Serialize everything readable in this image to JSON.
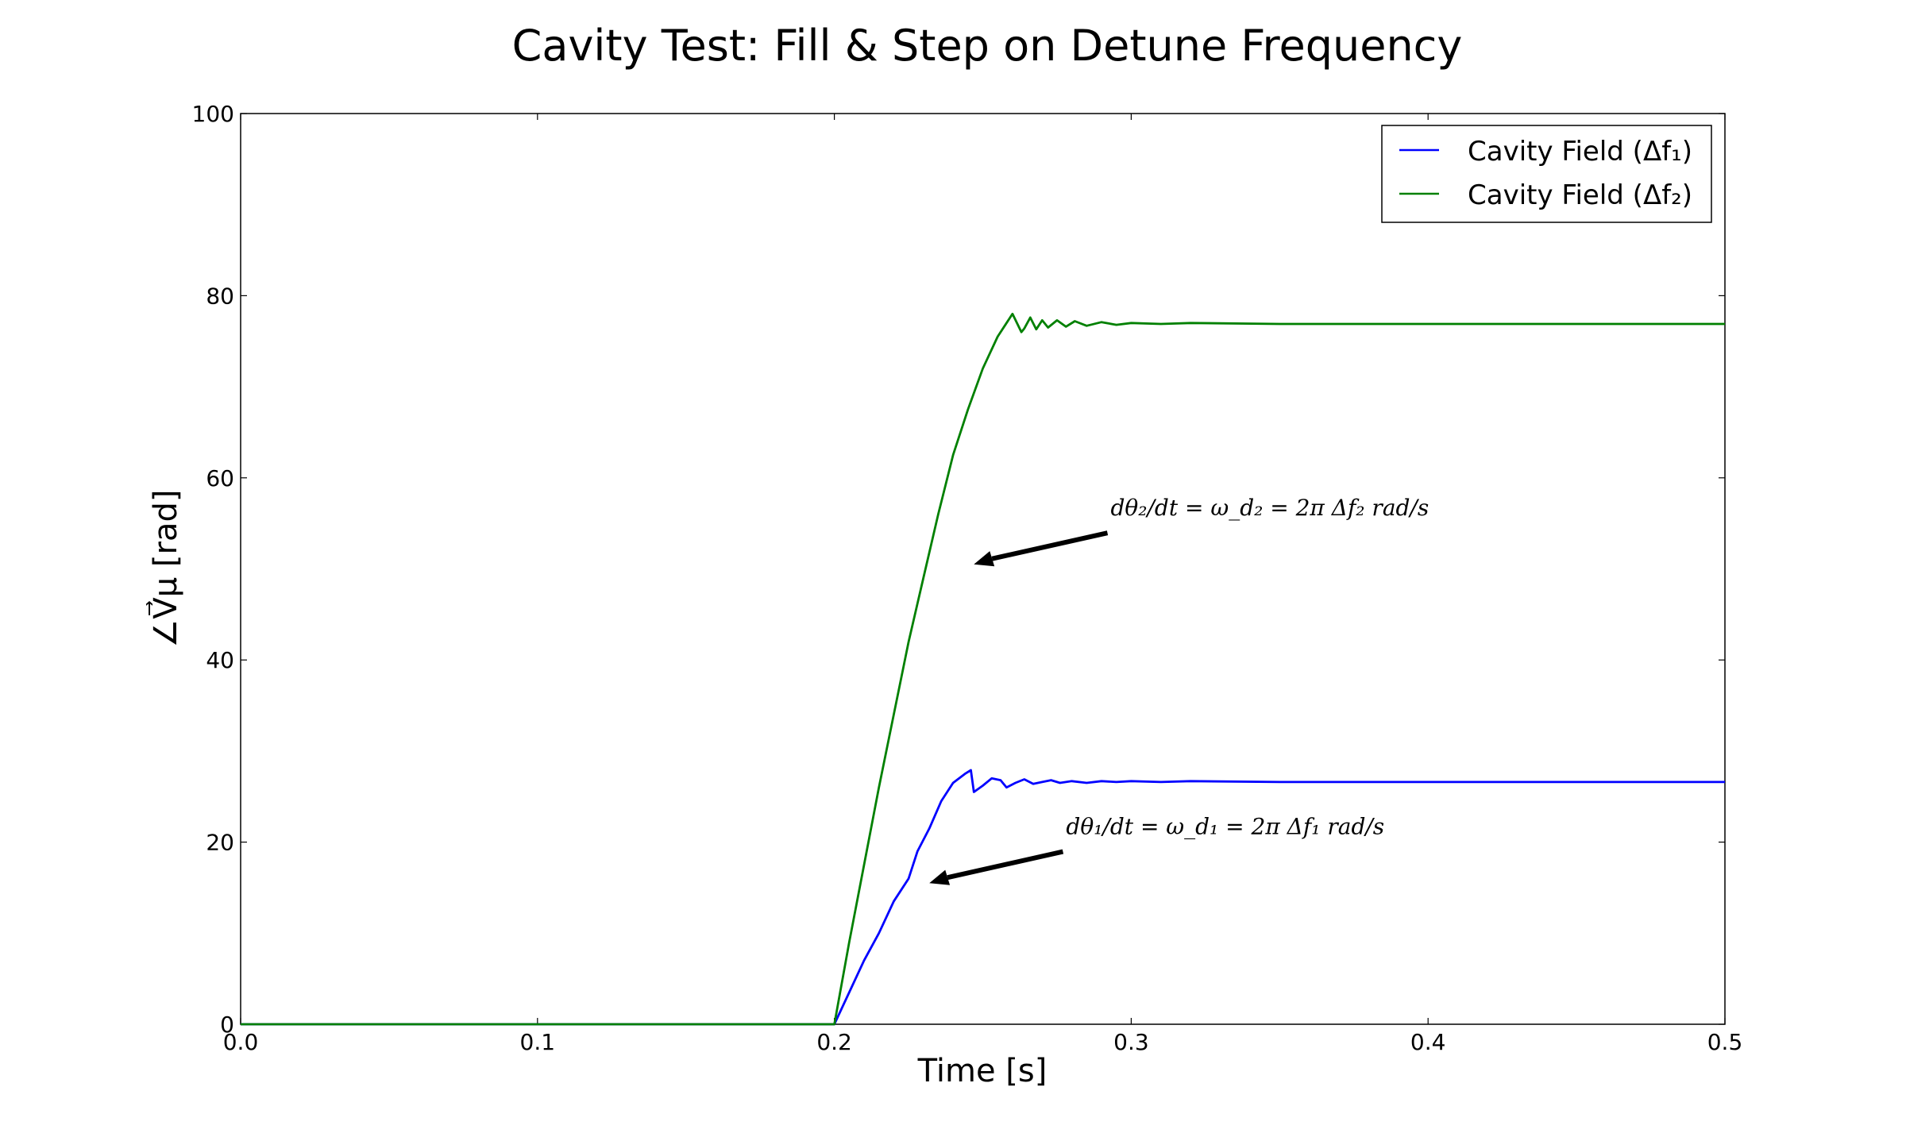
{
  "chart_data": {
    "type": "line",
    "title": "Cavity Test: Fill & Step on Detune Frequency",
    "xlabel": "Time [s]",
    "ylabel": "∠V⃗μ [rad]",
    "xlim": [
      0.0,
      0.5
    ],
    "ylim": [
      0,
      100
    ],
    "x_ticks": [
      "0.0",
      "0.1",
      "0.2",
      "0.3",
      "0.4",
      "0.5"
    ],
    "y_ticks": [
      "0",
      "20",
      "40",
      "60",
      "80",
      "100"
    ],
    "grid": false,
    "legend_position": "top-right",
    "series": [
      {
        "name": "Cavity Field (Δf₁)",
        "color": "#0000ff",
        "x": [
          0.0,
          0.2,
          0.205,
          0.21,
          0.215,
          0.22,
          0.225,
          0.228,
          0.232,
          0.236,
          0.24,
          0.244,
          0.246,
          0.247,
          0.25,
          0.253,
          0.256,
          0.258,
          0.261,
          0.264,
          0.267,
          0.27,
          0.273,
          0.276,
          0.28,
          0.285,
          0.29,
          0.295,
          0.3,
          0.31,
          0.32,
          0.35,
          0.4,
          0.5
        ],
        "y": [
          0,
          0,
          3.5,
          7,
          10,
          13.5,
          16,
          19,
          21.5,
          24.5,
          26.5,
          27.5,
          27.9,
          25.5,
          26.2,
          27.0,
          26.8,
          26.0,
          26.5,
          26.9,
          26.4,
          26.6,
          26.8,
          26.5,
          26.7,
          26.5,
          26.7,
          26.6,
          26.7,
          26.6,
          26.7,
          26.6,
          26.6,
          26.6
        ]
      },
      {
        "name": "Cavity Field (Δf₂)",
        "color": "#008000",
        "x": [
          0.0,
          0.2,
          0.205,
          0.21,
          0.215,
          0.22,
          0.225,
          0.23,
          0.235,
          0.24,
          0.245,
          0.25,
          0.255,
          0.258,
          0.26,
          0.263,
          0.264,
          0.266,
          0.268,
          0.27,
          0.272,
          0.275,
          0.278,
          0.281,
          0.285,
          0.29,
          0.295,
          0.3,
          0.31,
          0.32,
          0.35,
          0.4,
          0.5
        ],
        "y": [
          0,
          0,
          9,
          17.5,
          26,
          34,
          42,
          49,
          56,
          62.5,
          67.5,
          72,
          75.5,
          77,
          78,
          76.0,
          76.4,
          77.6,
          76.3,
          77.3,
          76.5,
          77.3,
          76.6,
          77.2,
          76.7,
          77.1,
          76.8,
          77.0,
          76.9,
          77.0,
          76.9,
          76.9,
          76.9
        ]
      }
    ],
    "annotations": [
      {
        "text": "dθ₂/dt = ω_d₂ = 2π Δf₂  rad/s",
        "xy": [
          0.247,
          50.5
        ],
        "xytext": [
          0.292,
          55
        ]
      },
      {
        "text": "dθ₁/dt = ω_d₁ = 2π Δf₁  rad/s",
        "xy": [
          0.232,
          15.5
        ],
        "xytext": [
          0.277,
          20
        ]
      }
    ]
  }
}
